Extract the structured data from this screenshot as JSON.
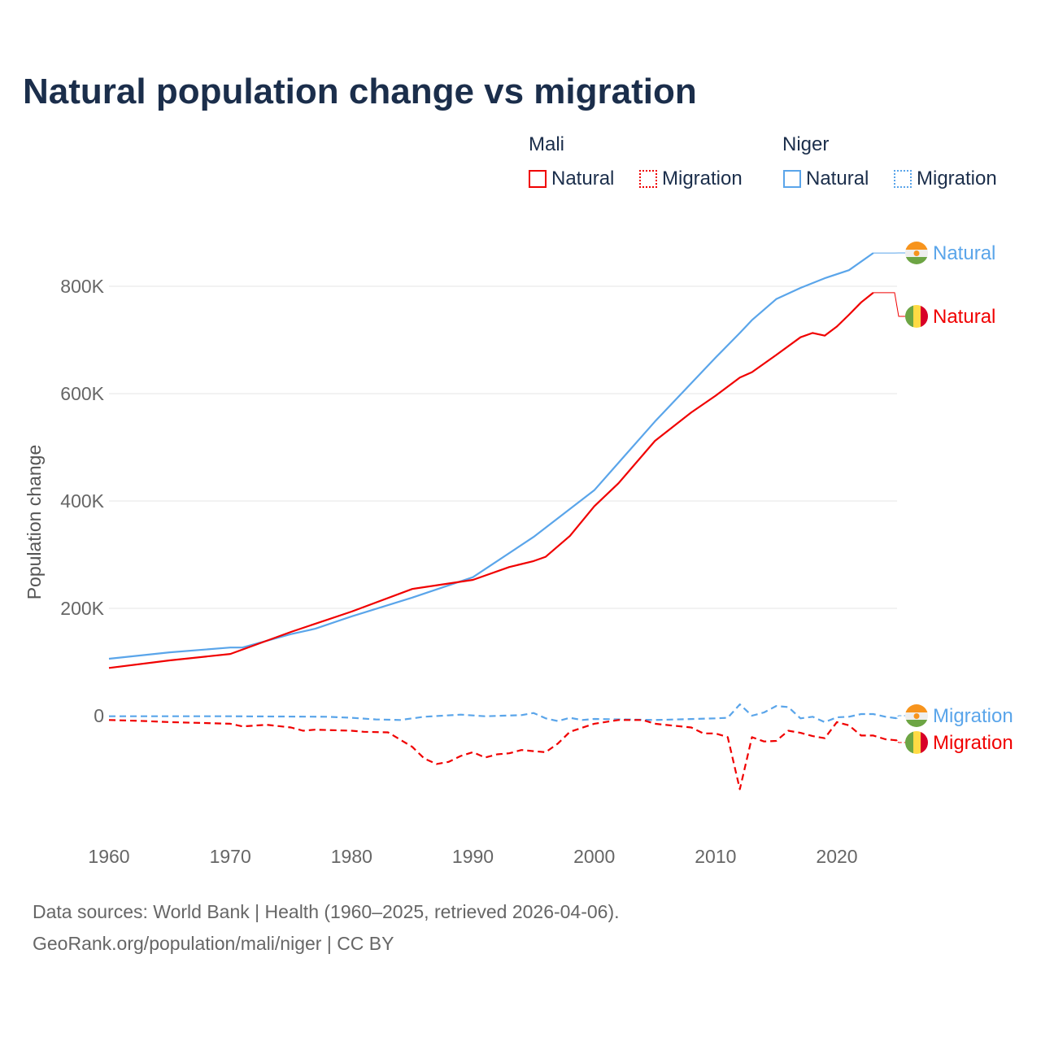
{
  "chart_data": {
    "type": "line",
    "title": "Natural population change vs migration",
    "xlabel": "",
    "ylabel": "Population change",
    "xlim": [
      1960,
      2026
    ],
    "ylim": [
      -150000,
      900000
    ],
    "x_ticks": [
      1960,
      1970,
      1980,
      1990,
      2000,
      2010,
      2020
    ],
    "x_tick_labels": [
      "1960",
      "1970",
      "1980",
      "1990",
      "2000",
      "2010",
      "2020"
    ],
    "y_ticks": [
      0,
      200000,
      400000,
      600000,
      800000
    ],
    "y_tick_labels": [
      "0",
      "200K",
      "400K",
      "600K",
      "800K"
    ],
    "grid": true,
    "legend_groups": [
      {
        "country": "Mali",
        "items": [
          "Natural",
          "Migration"
        ]
      },
      {
        "country": "Niger",
        "items": [
          "Natural",
          "Migration"
        ]
      }
    ],
    "legend_placement": "top-right",
    "series": [
      {
        "name": "Niger Natural",
        "country": "Niger",
        "kind": "Natural",
        "label": "Natural",
        "color": "#5aa5ea",
        "dash": "solid",
        "x": [
          1960,
          1965,
          1970,
          1971,
          1975,
          1977,
          1980,
          1985,
          1990,
          1995,
          2000,
          2005,
          2010,
          2012,
          2013,
          2015,
          2017,
          2019,
          2021,
          2023
        ],
        "y": [
          106000,
          118000,
          127000,
          127000,
          152000,
          162000,
          185000,
          220000,
          258000,
          333000,
          420000,
          548000,
          667000,
          713000,
          737000,
          776000,
          797000,
          815000,
          830000,
          862000
        ]
      },
      {
        "name": "Mali Natural",
        "country": "Mali",
        "kind": "Natural",
        "label": "Natural",
        "color": "#f00000",
        "dash": "solid",
        "x": [
          1960,
          1965,
          1970,
          1975,
          1980,
          1985,
          1990,
          1993,
          1995,
          1996,
          1998,
          2000,
          2002,
          2005,
          2008,
          2010,
          2012,
          2013,
          2015,
          2017,
          2018,
          2019,
          2020,
          2021,
          2022,
          2023
        ],
        "y": [
          89000,
          103000,
          115000,
          156000,
          194000,
          236000,
          253000,
          277000,
          288000,
          296000,
          335000,
          390000,
          433000,
          512000,
          565000,
          596000,
          630000,
          640000,
          672000,
          705000,
          713000,
          708000,
          725000,
          747000,
          770000,
          788000
        ]
      },
      {
        "name": "Niger Migration",
        "country": "Niger",
        "kind": "Migration",
        "label": "Migration",
        "color": "#5aa5ea",
        "dash": "dashed",
        "x": [
          1960,
          1970,
          1978,
          1980,
          1982,
          1984,
          1986,
          1989,
          1991,
          1994,
          1995,
          1996,
          1997,
          1998,
          1999,
          2000,
          2005,
          2010,
          2011,
          2012,
          2013,
          2014,
          2015,
          2016,
          2017,
          2018,
          2019,
          2020,
          2021,
          2022,
          2023,
          2024,
          2025
        ],
        "y": [
          -1000,
          -1000,
          -2000,
          -4000,
          -7000,
          -8000,
          -2000,
          2000,
          -1000,
          1000,
          5000,
          -5000,
          -10000,
          -4000,
          -8000,
          -6000,
          -8000,
          -5000,
          -4000,
          21000,
          0,
          6000,
          18000,
          16000,
          -5000,
          -2000,
          -12000,
          -3000,
          -2000,
          3000,
          3000,
          -2000,
          -5000
        ]
      },
      {
        "name": "Mali Migration",
        "country": "Mali",
        "kind": "Migration",
        "label": "Migration",
        "color": "#f00000",
        "dash": "dashed",
        "x": [
          1960,
          1963,
          1965,
          1970,
          1971,
          1973,
          1975,
          1976,
          1977,
          1980,
          1981,
          1983,
          1985,
          1986,
          1987,
          1988,
          1989,
          1990,
          1991,
          1992,
          1993,
          1994,
          1995,
          1996,
          1997,
          1998,
          2000,
          2002,
          2004,
          2005,
          2008,
          2009,
          2010,
          2011,
          2012,
          2013,
          2014,
          2015,
          2016,
          2017,
          2018,
          2019,
          2020,
          2021,
          2022,
          2023,
          2024,
          2025
        ],
        "y": [
          -8000,
          -10000,
          -12000,
          -15000,
          -20000,
          -17000,
          -22000,
          -28000,
          -26000,
          -28000,
          -30000,
          -31000,
          -58000,
          -80000,
          -90000,
          -86000,
          -75000,
          -68000,
          -78000,
          -72000,
          -70000,
          -64000,
          -66000,
          -68000,
          -52000,
          -30000,
          -15000,
          -8000,
          -8000,
          -15000,
          -22000,
          -33000,
          -33000,
          -40000,
          -137000,
          -40000,
          -48000,
          -47000,
          -28000,
          -32000,
          -38000,
          -42000,
          -12000,
          -18000,
          -37000,
          -37000,
          -44000,
          -46000
        ]
      }
    ],
    "end_labels_order": [
      "Niger Natural",
      "Mali Natural",
      "Niger Migration",
      "Mali Migration"
    ]
  },
  "source_line1": "Data sources: World Bank | Health (1960–2025, retrieved 2026-04-06).",
  "source_line2": "GeoRank.org/population/mali/niger | CC BY"
}
